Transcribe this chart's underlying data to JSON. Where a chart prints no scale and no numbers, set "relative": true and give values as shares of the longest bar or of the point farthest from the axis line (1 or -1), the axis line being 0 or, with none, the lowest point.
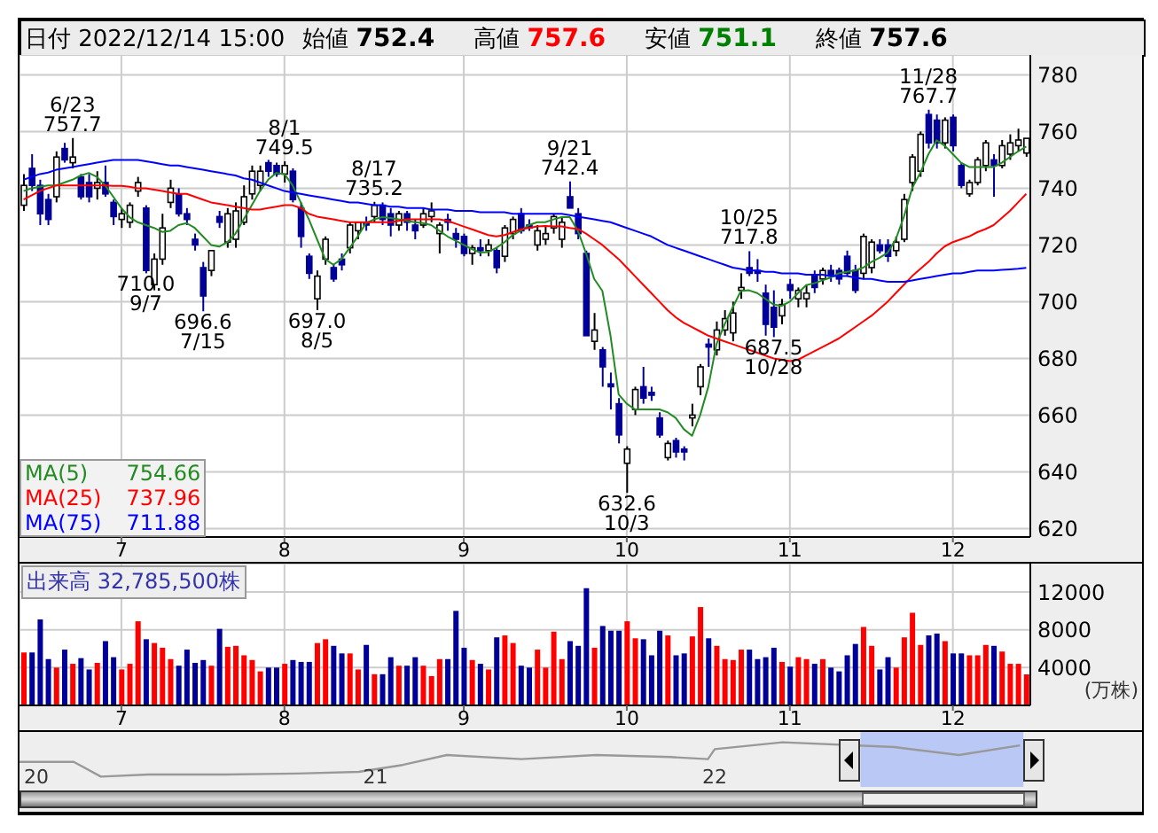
{
  "chart_data": [
    {
      "type": "candlestick",
      "title": "日付 2022/12/14 15:00",
      "categories": [
        null,
        null,
        null,
        null,
        null,
        null,
        null,
        null,
        null,
        null,
        null,
        null,
        "7",
        null,
        null,
        null,
        null,
        null,
        null,
        null,
        null,
        null,
        null,
        null,
        null,
        null,
        null,
        null,
        null,
        null,
        null,
        null,
        "8",
        null,
        null,
        null,
        null,
        null,
        null,
        null,
        null,
        null,
        null,
        null,
        null,
        null,
        null,
        null,
        null,
        null,
        null,
        null,
        null,
        null,
        "9",
        null,
        null,
        null,
        null,
        null,
        null,
        null,
        null,
        null,
        null,
        null,
        null,
        null,
        null,
        null,
        null,
        null,
        null,
        null,
        "10",
        null,
        null,
        null,
        null,
        null,
        null,
        null,
        null,
        null,
        null,
        null,
        null,
        null,
        null,
        null,
        null,
        null,
        null,
        null,
        "11",
        null,
        null,
        null,
        null,
        null,
        null,
        null,
        null,
        null,
        null,
        null,
        null,
        null,
        null,
        null,
        null,
        null,
        null,
        null,
        "12",
        null,
        null,
        null,
        null,
        null,
        null,
        null,
        null,
        null
      ],
      "ohlc": [
        [
          734,
          745,
          732,
          741
        ],
        [
          747,
          752,
          739,
          741
        ],
        [
          741,
          743,
          727,
          731
        ],
        [
          736,
          738,
          727,
          729
        ],
        [
          737,
          753,
          735,
          751
        ],
        [
          754,
          756,
          749,
          750
        ],
        [
          749,
          757.7,
          747,
          751
        ],
        [
          744,
          745,
          736,
          737
        ],
        [
          742,
          745,
          735,
          737
        ],
        [
          740,
          746,
          736,
          742
        ],
        [
          742,
          748,
          737,
          738
        ],
        [
          735,
          736,
          727,
          730
        ],
        [
          729,
          733,
          726,
          731
        ],
        [
          728,
          735,
          726,
          734
        ],
        [
          739,
          744,
          737,
          742
        ],
        [
          733,
          734,
          710,
          711
        ],
        [
          706,
          717,
          704,
          715
        ],
        [
          715,
          731,
          713,
          726
        ],
        [
          735,
          743,
          733,
          740
        ],
        [
          738,
          740,
          730,
          731
        ],
        [
          731,
          733,
          727,
          729
        ],
        [
          722,
          724,
          718,
          720
        ],
        [
          712,
          714,
          696.6,
          702
        ],
        [
          711,
          718,
          709,
          718
        ],
        [
          730,
          732,
          726,
          728
        ],
        [
          721,
          733,
          719,
          731
        ],
        [
          722,
          735,
          719,
          732
        ],
        [
          728,
          741,
          727,
          737
        ],
        [
          738,
          748,
          736,
          746
        ],
        [
          741,
          748,
          739,
          746
        ],
        [
          749,
          750,
          744,
          746
        ],
        [
          748,
          749,
          744,
          745
        ],
        [
          745,
          749.5,
          742,
          748
        ],
        [
          746,
          747,
          735,
          736
        ],
        [
          733,
          735,
          719,
          723
        ],
        [
          716,
          717,
          708,
          710
        ],
        [
          701,
          711,
          697,
          709
        ],
        [
          715,
          723,
          713,
          722
        ],
        [
          712,
          713,
          707,
          708
        ],
        [
          715,
          717,
          711,
          713
        ],
        [
          719,
          728,
          717,
          727
        ],
        [
          725,
          728,
          722,
          728
        ],
        [
          728,
          730,
          725,
          727
        ],
        [
          730,
          735.2,
          728,
          734
        ],
        [
          734,
          735,
          727,
          729
        ],
        [
          731,
          733,
          723,
          727
        ],
        [
          727,
          732,
          725,
          731
        ],
        [
          731,
          732,
          725,
          728
        ],
        [
          727,
          729,
          722,
          725
        ],
        [
          727,
          733,
          726,
          731
        ],
        [
          730,
          735,
          728,
          732
        ],
        [
          724,
          728,
          717,
          727
        ],
        [
          729,
          731,
          725,
          728
        ],
        [
          724,
          726,
          719,
          722
        ],
        [
          723,
          724,
          716,
          717
        ],
        [
          717,
          720,
          713,
          719
        ],
        [
          719,
          722,
          716,
          718
        ],
        [
          718,
          722,
          716,
          720
        ],
        [
          718,
          719,
          710,
          712
        ],
        [
          716,
          727,
          714,
          726
        ],
        [
          724,
          730,
          722,
          729
        ],
        [
          731,
          733,
          724,
          725
        ],
        [
          727,
          729,
          725,
          726
        ],
        [
          720,
          727,
          718,
          725
        ],
        [
          722,
          727,
          720,
          724
        ],
        [
          726,
          731,
          724,
          730
        ],
        [
          722,
          730,
          719,
          728
        ],
        [
          737,
          742.4,
          733,
          733
        ],
        [
          731,
          733,
          722,
          724
        ],
        [
          717,
          718,
          688,
          688
        ],
        [
          686,
          696,
          683,
          690
        ],
        [
          683,
          684,
          670,
          677
        ],
        [
          671,
          675,
          662,
          670
        ],
        [
          664,
          666,
          650,
          653
        ],
        [
          643,
          649,
          632.6,
          648
        ],
        [
          662,
          670,
          660,
          669
        ],
        [
          670,
          677,
          664,
          666
        ],
        [
          668,
          670,
          665,
          667
        ],
        [
          659,
          661,
          652,
          653
        ],
        [
          645,
          651,
          644,
          650
        ],
        [
          651,
          652,
          645,
          647
        ],
        [
          648,
          649,
          644,
          647
        ],
        [
          659,
          664,
          656,
          660
        ],
        [
          670,
          678,
          667,
          677
        ],
        [
          685,
          687,
          677,
          684
        ],
        [
          683,
          693,
          681,
          690
        ],
        [
          690,
          697,
          688,
          694
        ],
        [
          689,
          700,
          686,
          696
        ],
        [
          704,
          710,
          701,
          705
        ],
        [
          712,
          717.8,
          709,
          710
        ],
        [
          711,
          715,
          707,
          710
        ],
        [
          703,
          706,
          688,
          692
        ],
        [
          698,
          704,
          687.5,
          691
        ],
        [
          695,
          701,
          692,
          699
        ],
        [
          706,
          708,
          701,
          704
        ],
        [
          701,
          705,
          698,
          704
        ],
        [
          701,
          706,
          698,
          703
        ],
        [
          709,
          711,
          703,
          705
        ],
        [
          708,
          712,
          706,
          711
        ],
        [
          711,
          713,
          707,
          709
        ],
        [
          711,
          712,
          706,
          708
        ],
        [
          716,
          718,
          709,
          710
        ],
        [
          711,
          713,
          703,
          704
        ],
        [
          710,
          724,
          708,
          723
        ],
        [
          712,
          722,
          710,
          721
        ],
        [
          720,
          722,
          717,
          718
        ],
        [
          720,
          722,
          714,
          716
        ],
        [
          718,
          723,
          716,
          721
        ],
        [
          722,
          738,
          721,
          736
        ],
        [
          742,
          752,
          739,
          751
        ],
        [
          746,
          760,
          744,
          759
        ],
        [
          766,
          767.7,
          754,
          756
        ],
        [
          764,
          766,
          754,
          756
        ],
        [
          756,
          765,
          754,
          764
        ],
        [
          765,
          766,
          753,
          755
        ],
        [
          748,
          749,
          740,
          741
        ],
        [
          738,
          743,
          737,
          742
        ],
        [
          742,
          751,
          741,
          750
        ],
        [
          748,
          757,
          746,
          756
        ],
        [
          750,
          752,
          737,
          748
        ],
        [
          748,
          757,
          747,
          755
        ],
        [
          752,
          759,
          750,
          756
        ],
        [
          755,
          761,
          753,
          757
        ],
        [
          752.4,
          757.6,
          751.1,
          757.6
        ]
      ],
      "series": [
        {
          "name": "MA(5) 754.66",
          "type": "line",
          "color": "#228b22",
          "values": [
            739,
            740,
            740.5,
            741,
            741,
            742,
            743,
            744.5,
            745.4,
            744,
            741,
            737,
            733,
            729.8,
            728,
            727,
            726,
            724.6,
            725,
            727,
            727.7,
            726,
            723,
            720,
            719.4,
            721,
            724,
            729,
            734,
            739,
            743,
            745.4,
            745,
            741,
            735,
            729,
            722,
            715,
            713,
            715,
            719,
            723,
            727.7,
            729,
            729.8,
            729.5,
            729,
            728.5,
            728,
            727.7,
            727,
            725,
            723,
            721.5,
            720,
            718.5,
            717.3,
            717.5,
            719,
            721,
            723.5,
            725,
            727,
            728,
            728,
            729,
            729.8,
            729.8,
            725,
            717,
            708,
            703.8,
            688,
            667.3,
            664,
            662,
            662,
            662,
            662,
            661,
            659,
            655,
            652.7,
            660,
            670,
            685,
            692,
            698,
            703.8,
            704,
            703,
            701,
            699,
            698.5,
            700,
            703,
            705.8,
            706.5,
            707.5,
            708.5,
            710,
            710.5,
            711,
            712,
            714,
            715.5,
            717.3,
            722,
            730,
            740,
            745.4,
            752,
            756.9,
            755,
            752,
            749,
            747.5,
            747.5,
            747.5,
            747.5,
            749,
            751,
            753,
            754.7
          ]
        },
        {
          "name": "MA(25) 737.96",
          "type": "line",
          "color": "#ff0000",
          "values": [
            736,
            737.5,
            739,
            740,
            741,
            741,
            741,
            741,
            741,
            741,
            741,
            740.8,
            740.8,
            740.5,
            740,
            740,
            739.5,
            739,
            738.5,
            738,
            738,
            737,
            736,
            735,
            734.5,
            734,
            733.5,
            733,
            732.5,
            732.5,
            733,
            733.5,
            734,
            734,
            733,
            731,
            730,
            729.5,
            729,
            728.5,
            728,
            728,
            728,
            728,
            728,
            728,
            728.5,
            729,
            729,
            729,
            729,
            729,
            728.5,
            727.5,
            726.5,
            725.5,
            724.5,
            723.5,
            723,
            723.5,
            724.5,
            725.5,
            726,
            726.5,
            726.7,
            726.5,
            726.5,
            726,
            725.6,
            724,
            722,
            720,
            717.5,
            715,
            712,
            709,
            706,
            703,
            700,
            697,
            694.5,
            692.5,
            691,
            689.5,
            688,
            687,
            686,
            685,
            684,
            683,
            682,
            681,
            680,
            679.5,
            679,
            679.5,
            681,
            682.5,
            684,
            685.5,
            687,
            689,
            691,
            693,
            695,
            697.5,
            700,
            703,
            706,
            709,
            711.5,
            714,
            717,
            719.5,
            721,
            722,
            723,
            724.5,
            725.6,
            727,
            729.5,
            732,
            735,
            738
          ]
        },
        {
          "name": "MA(75) 711.88",
          "type": "line",
          "color": "#0000ff",
          "values": [
            743,
            744,
            745,
            745.5,
            746.5,
            747,
            747.5,
            748,
            748.5,
            749,
            749.5,
            750,
            750,
            750,
            750,
            749.5,
            749,
            748.5,
            748,
            748,
            747.5,
            747,
            746.5,
            746,
            745.5,
            745,
            744.5,
            743.5,
            743,
            742,
            741,
            740,
            739,
            738.5,
            738,
            737.5,
            737,
            736.5,
            736,
            735.5,
            735,
            735,
            734.5,
            734,
            734,
            733.5,
            733.5,
            733,
            733,
            733,
            732.5,
            732.5,
            732.5,
            732,
            732,
            732,
            731.5,
            731.5,
            731.5,
            731.5,
            731,
            731,
            731,
            731,
            731,
            731,
            731,
            730.5,
            730,
            729.5,
            729,
            728.5,
            728,
            727,
            726,
            725,
            724,
            723,
            721.5,
            720,
            719,
            718,
            717,
            716,
            715,
            714,
            713,
            712,
            711.5,
            711,
            711,
            710.5,
            710.5,
            710,
            710,
            710,
            709.5,
            709.5,
            709.5,
            709,
            709,
            709,
            708.5,
            708,
            708,
            707.5,
            707,
            707,
            707,
            707.5,
            708,
            708.5,
            709,
            709.5,
            710,
            710,
            710.5,
            711,
            711,
            711,
            711.2,
            711.4,
            711.6,
            711.9
          ]
        }
      ],
      "ylim": [
        617,
        787
      ],
      "yticks": [
        620,
        640,
        660,
        680,
        700,
        720,
        740,
        760,
        780
      ],
      "grid": true,
      "legend": "bottom left",
      "marker": "none",
      "annotations": [
        "始値 752.4",
        "高値 757.6",
        "安値 751.1",
        "終値 757.6",
        {
          "text": "6/23 757.7",
          "y": 757.7
        },
        {
          "text": "696.6 7/15",
          "y": 696.6
        },
        {
          "text": "8/1 749.5",
          "y": 749.5
        },
        {
          "text": "697.0 8/5",
          "y": 697
        },
        {
          "text": "8/17 735.2",
          "y": 735.2
        },
        {
          "text": "710.0 9/7",
          "y": 710
        },
        {
          "text": "9/21 742.4",
          "y": 742.4
        },
        {
          "text": "632.6 10/3",
          "y": 632.6
        },
        {
          "text": "10/25 717.8",
          "y": 717.8
        },
        {
          "text": "687.5 10/28",
          "y": 687.5
        },
        {
          "text": "11/28 767.7",
          "y": 767.7
        }
      ]
    },
    {
      "type": "bar",
      "title": "出来高 32,785,500株",
      "ylabel": "(万株)",
      "categories": [
        null,
        null,
        null,
        null,
        null,
        null,
        null,
        null,
        null,
        null,
        null,
        null,
        "7",
        null,
        null,
        null,
        null,
        null,
        null,
        null,
        null,
        null,
        null,
        null,
        null,
        null,
        null,
        null,
        null,
        null,
        null,
        null,
        "8",
        null,
        null,
        null,
        null,
        null,
        null,
        null,
        null,
        null,
        null,
        null,
        null,
        null,
        null,
        null,
        null,
        null,
        null,
        null,
        null,
        null,
        "9",
        null,
        null,
        null,
        null,
        null,
        null,
        null,
        null,
        null,
        null,
        null,
        null,
        null,
        null,
        null,
        null,
        null,
        null,
        null,
        "10",
        null,
        null,
        null,
        null,
        null,
        null,
        null,
        null,
        null,
        null,
        null,
        null,
        null,
        null,
        null,
        null,
        null,
        null,
        null,
        "11",
        null,
        null,
        null,
        null,
        null,
        null,
        null,
        null,
        null,
        null,
        null,
        null,
        null,
        null,
        null,
        null,
        null,
        null,
        null,
        "12",
        null,
        null,
        null,
        null,
        null,
        null,
        null,
        null,
        null
      ],
      "values": [
        5600,
        5600,
        9100,
        4900,
        4000,
        5900,
        4400,
        5000,
        3800,
        4500,
        6800,
        5100,
        3800,
        4400,
        8900,
        7000,
        6600,
        6100,
        4900,
        4200,
        5900,
        4500,
        4800,
        4200,
        8100,
        6200,
        6300,
        5300,
        4800,
        3600,
        4000,
        4000,
        4400,
        4800,
        4600,
        4600,
        6600,
        7000,
        6300,
        5500,
        5500,
        3800,
        6400,
        3300,
        3300,
        5100,
        4200,
        4200,
        5100,
        4200,
        3100,
        4900,
        4900,
        10000,
        6100,
        4800,
        4400,
        3800,
        7200,
        7400,
        6600,
        4200,
        4000,
        5900,
        4000,
        7800,
        4900,
        6800,
        6300,
        12400,
        6100,
        8400,
        7900,
        7900,
        8900,
        7100,
        7000,
        5300,
        7900,
        7400,
        5300,
        5500,
        7300,
        10400,
        7100,
        6300,
        4900,
        4800,
        5900,
        5900,
        4900,
        5100,
        6100,
        4600,
        4100,
        5100,
        4900,
        4400,
        4900,
        4000,
        3600,
        5300,
        6500,
        8300,
        6300,
        3800,
        5100,
        4000,
        7200,
        9800,
        6400,
        7400,
        7600,
        6800,
        5500,
        5500,
        5300,
        5300,
        6400,
        6300,
        5700,
        4400,
        4400,
        3280
      ],
      "colors": [
        "#ff0000",
        "#000099",
        "#000099",
        "#000099",
        "#ff0000",
        "#000099",
        "#ff0000",
        "#000099",
        "#000099",
        "#ff0000",
        "#000099",
        "#000099",
        "#ff0000",
        "#ff0000",
        "#ff0000",
        "#000099",
        "#ff0000",
        "#ff0000",
        "#ff0000",
        "#000099",
        "#000099",
        "#000099",
        "#000099",
        "#ff0000",
        "#000099",
        "#ff0000",
        "#ff0000",
        "#ff0000",
        "#ff0000",
        "#ff0000",
        "#000099",
        "#000099",
        "#ff0000",
        "#000099",
        "#000099",
        "#000099",
        "#ff0000",
        "#ff0000",
        "#000099",
        "#000099",
        "#ff0000",
        "#ff0000",
        "#000099",
        "#ff0000",
        "#000099",
        "#000099",
        "#ff0000",
        "#000099",
        "#000099",
        "#ff0000",
        "#ff0000",
        "#ff0000",
        "#000099",
        "#000099",
        "#000099",
        "#ff0000",
        "#000099",
        "#ff0000",
        "#000099",
        "#ff0000",
        "#ff0000",
        "#000099",
        "#000099",
        "#ff0000",
        "#ff0000",
        "#ff0000",
        "#ff0000",
        "#000099",
        "#000099",
        "#000099",
        "#ff0000",
        "#000099",
        "#000099",
        "#000099",
        "#ff0000",
        "#ff0000",
        "#000099",
        "#000099",
        "#000099",
        "#ff0000",
        "#000099",
        "#000099",
        "#ff0000",
        "#ff0000",
        "#000099",
        "#ff0000",
        "#ff0000",
        "#ff0000",
        "#ff0000",
        "#000099",
        "#000099",
        "#000099",
        "#000099",
        "#ff0000",
        "#000099",
        "#ff0000",
        "#ff0000",
        "#000099",
        "#ff0000",
        "#000099",
        "#000099",
        "#000099",
        "#000099",
        "#ff0000",
        "#ff0000",
        "#000099",
        "#000099",
        "#ff0000",
        "#ff0000",
        "#ff0000",
        "#ff0000",
        "#000099",
        "#000099",
        "#ff0000",
        "#000099",
        "#000099",
        "#ff0000",
        "#ff0000",
        "#ff0000",
        "#000099",
        "#ff0000",
        "#ff0000",
        "#ff0000",
        "#ff0000"
      ],
      "ylim": [
        0,
        15000
      ],
      "yticks": [
        4000,
        8000,
        12000
      ],
      "grid": true
    },
    {
      "type": "line",
      "relative": true,
      "color": "#999999",
      "x": [
        2019.95,
        2020.11,
        2020.19,
        2020.33,
        2020.55,
        2020.77,
        2020.95,
        2021.08,
        2021.21,
        2021.43,
        2021.65,
        2021.87,
        2021.98,
        2022.0,
        2022.2,
        2022.53,
        2022.72,
        2022.9
      ],
      "values": [
        0.43,
        0.43,
        0,
        0.06,
        0.06,
        0.09,
        0.14,
        0.34,
        0.63,
        0.51,
        0.63,
        0.57,
        0.51,
        0.8,
        1,
        0.86,
        0.63,
        0.91
      ],
      "xlim": [
        2019.95,
        2023.26
      ],
      "xticks": [
        {
          "value": 2020,
          "label": "20"
        },
        {
          "value": 2021,
          "label": "21"
        },
        {
          "value": 2022,
          "label": "22"
        }
      ],
      "bands": [
        {
          "axis": "x",
          "from": 2022.43,
          "to": 2022.91,
          "color": "#b4c3f5"
        }
      ]
    }
  ]
}
